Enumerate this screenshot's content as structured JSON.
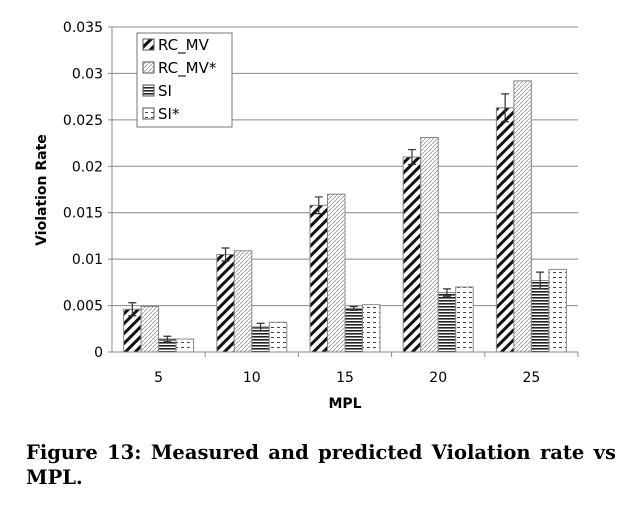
{
  "chart_data": {
    "type": "bar",
    "xlabel": "MPL",
    "ylabel": "Violation Rate",
    "categories": [
      "5",
      "10",
      "15",
      "20",
      "25"
    ],
    "ylim": [
      0,
      0.035
    ],
    "yticks": [
      "0",
      "0.005",
      "0.01",
      "0.015",
      "0.02",
      "0.025",
      "0.03",
      "0.035"
    ],
    "grid": true,
    "legend_position": "top-left",
    "series": [
      {
        "name": "RC_MV",
        "pattern": "wide-diagonal",
        "values": [
          0.0046,
          0.0105,
          0.0158,
          0.021,
          0.0263
        ],
        "error": [
          0.0007,
          0.0007,
          0.0009,
          0.0008,
          0.0015
        ]
      },
      {
        "name": "RC_MV*",
        "pattern": "light-diagonal",
        "values": [
          0.0049,
          0.0109,
          0.017,
          0.0231,
          0.0292
        ]
      },
      {
        "name": "SI",
        "pattern": "horizontal-lines",
        "values": [
          0.0014,
          0.0027,
          0.0047,
          0.0064,
          0.0077
        ],
        "error": [
          0.0003,
          0.0004,
          0.0002,
          0.0004,
          0.0009
        ]
      },
      {
        "name": "SI*",
        "pattern": "dashes",
        "values": [
          0.0014,
          0.0032,
          0.0051,
          0.007,
          0.0089
        ]
      }
    ]
  },
  "caption": "Figure 13: Measured and predicted Violation rate vs MPL."
}
